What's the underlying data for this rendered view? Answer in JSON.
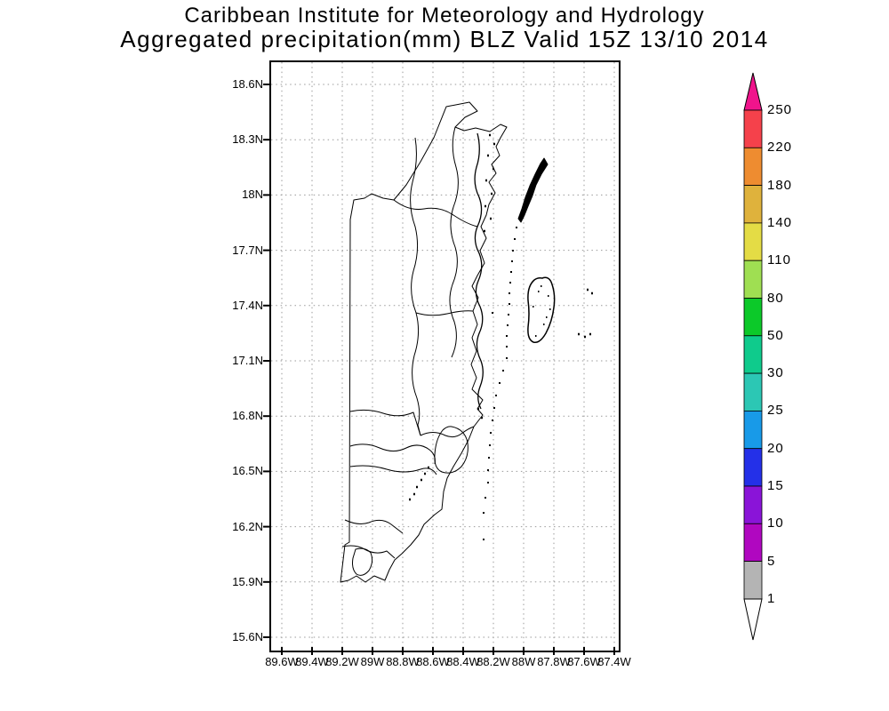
{
  "title": {
    "line1": "Caribbean Institute for Meteorology and Hydrology",
    "line2": "Aggregated precipitation(mm) BLZ Valid 15Z 13/10 2014"
  },
  "map": {
    "region_code": "BLZ",
    "y_axis_labels": [
      "18.6N",
      "18.3N",
      "18N",
      "17.7N",
      "17.4N",
      "17.1N",
      "16.8N",
      "16.5N",
      "16.2N",
      "15.9N",
      "15.6N"
    ],
    "x_axis_labels": [
      "89.6W",
      "89.4W",
      "89.2W",
      "89W",
      "88.8W",
      "88.6W",
      "88.4W",
      "88.2W",
      "88W",
      "87.8W",
      "87.6W",
      "87.4W"
    ]
  },
  "colorbar": {
    "unit": "mm",
    "labels": [
      "250",
      "220",
      "180",
      "140",
      "110",
      "80",
      "50",
      "30",
      "25",
      "20",
      "15",
      "10",
      "5",
      "1"
    ],
    "segment_colors": [
      "#f5414b",
      "#ee8c30",
      "#dfb23c",
      "#e4dc45",
      "#9fdf52",
      "#0cc929",
      "#0fcb8c",
      "#2cc7b4",
      "#189ae8",
      "#2430e8",
      "#8a14d8",
      "#b007c0",
      "#b4b4b4"
    ],
    "top_arrow_color": "#f0148c",
    "bottom_arrow_color": "#ffffff"
  },
  "chart_data": {
    "type": "map",
    "title": "Aggregated precipitation(mm) BLZ Valid 15Z 13/10 2014",
    "organization": "Caribbean Institute for Meteorology and Hydrology",
    "region": "Belize (BLZ)",
    "valid_time": "15Z 13/10 2014",
    "lat_ticks": [
      "18.6N",
      "18.3N",
      "18N",
      "17.7N",
      "17.4N",
      "17.1N",
      "16.8N",
      "16.5N",
      "16.2N",
      "15.9N",
      "15.6N"
    ],
    "lon_ticks": [
      "89.6W",
      "89.4W",
      "89.2W",
      "89W",
      "88.8W",
      "88.6W",
      "88.4W",
      "88.2W",
      "88W",
      "87.8W",
      "87.6W",
      "87.4W"
    ],
    "precip_scale_mm": [
      1,
      5,
      10,
      15,
      20,
      25,
      30,
      50,
      80,
      110,
      140,
      180,
      220,
      250
    ],
    "grid": true,
    "legend_position": "right"
  }
}
